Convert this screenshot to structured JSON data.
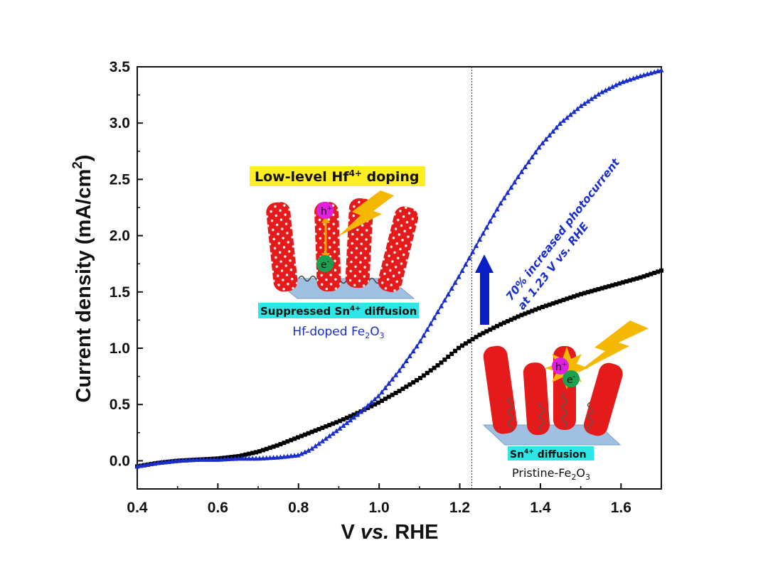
{
  "chart_data": {
    "type": "line",
    "xlabel": {
      "pre": "V ",
      "italic": "vs.",
      "post": " RHE"
    },
    "ylabel": {
      "pre": "Current density (mA/cm",
      "sup": "2",
      "post": ")"
    },
    "xlim": [
      0.4,
      1.7
    ],
    "ylim": [
      -0.25,
      3.5
    ],
    "xticks": [
      "0.4",
      "0.6",
      "0.8",
      "1.0",
      "1.2",
      "1.4",
      "1.6"
    ],
    "yticks": [
      "0.0",
      "0.5",
      "1.0",
      "1.5",
      "2.0",
      "2.5",
      "3.0",
      "3.5"
    ],
    "reference_line_x": 1.23,
    "series": [
      {
        "name": "Pristine-Fe2O3",
        "color": "#000000",
        "marker": "square",
        "x": [
          0.4,
          0.45,
          0.5,
          0.55,
          0.6,
          0.65,
          0.7,
          0.75,
          0.8,
          0.85,
          0.9,
          0.95,
          1.0,
          1.05,
          1.1,
          1.15,
          1.2,
          1.25,
          1.3,
          1.35,
          1.4,
          1.45,
          1.5,
          1.55,
          1.6,
          1.65,
          1.7
        ],
        "y": [
          -0.05,
          -0.02,
          0.0,
          0.01,
          0.02,
          0.04,
          0.08,
          0.14,
          0.21,
          0.28,
          0.35,
          0.43,
          0.52,
          0.62,
          0.73,
          0.86,
          1.01,
          1.12,
          1.21,
          1.29,
          1.36,
          1.42,
          1.48,
          1.53,
          1.58,
          1.63,
          1.69
        ]
      },
      {
        "name": "Hf-doped Fe2O3",
        "color": "#1a2ecc",
        "marker": "triangle",
        "x": [
          0.4,
          0.45,
          0.5,
          0.55,
          0.6,
          0.65,
          0.7,
          0.75,
          0.8,
          0.83,
          0.85,
          0.9,
          0.95,
          1.0,
          1.05,
          1.1,
          1.15,
          1.2,
          1.25,
          1.3,
          1.35,
          1.4,
          1.45,
          1.5,
          1.55,
          1.6,
          1.65,
          1.7
        ],
        "y": [
          -0.05,
          -0.02,
          0.0,
          0.01,
          0.01,
          0.02,
          0.02,
          0.03,
          0.05,
          0.1,
          0.15,
          0.28,
          0.42,
          0.58,
          0.8,
          1.05,
          1.35,
          1.65,
          1.97,
          2.28,
          2.55,
          2.8,
          3.0,
          3.15,
          3.27,
          3.36,
          3.42,
          3.47
        ]
      }
    ],
    "annotation": {
      "line1": "70% increased photocurrent",
      "line2": "at 1.23 V vs. RHE"
    }
  },
  "inset_hf": {
    "title_pre": "Low-level Hf",
    "title_sup": "4+",
    "title_post": " doping",
    "hole": "h",
    "hole_sup": "+",
    "electron": "e",
    "electron_sup": "-",
    "sub_pre": "Suppressed Sn",
    "sub_sup": "4+",
    "sub_post": " diffusion",
    "caption_pre": "Hf-doped Fe",
    "caption_sub1": "2",
    "caption_mid": "O",
    "caption_sub2": "3"
  },
  "inset_pristine": {
    "hole": "h",
    "hole_sup": "+",
    "electron": "e",
    "electron_sup": "-",
    "sub_pre": "Sn",
    "sub_sup": "4+",
    "sub_post": " diffusion",
    "caption_pre": "Pristine-Fe",
    "caption_sub1": "2",
    "caption_mid": "O",
    "caption_sub2": "3"
  },
  "colors": {
    "axis": "#111111",
    "rod": "#e51b1b",
    "substrate": "#9fc0e0",
    "highlight_cyan": "#2ee6e6",
    "highlight_yellow": "#ffee22",
    "bolt": "#f5b800",
    "hole": "#e020e0",
    "electron": "#1aa050",
    "arrow": "#0a1ec8"
  }
}
